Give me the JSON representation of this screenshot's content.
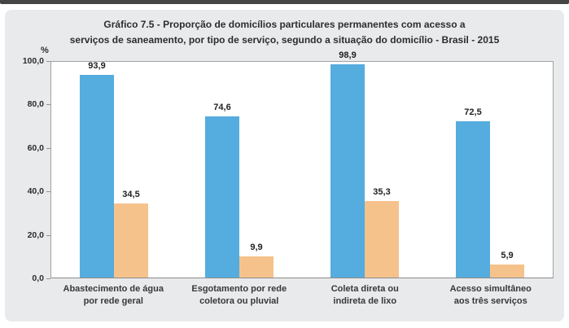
{
  "chart_data": {
    "type": "bar",
    "title": "Gráfico 7.5 - Proporção de domicílios particulares permanentes com acesso a\nserviços de saneamento, por tipo de serviço, segundo a situação do domicílio - Brasil - 2015",
    "categories": [
      "Abastecimento de água\npor rede geral",
      "Esgotamento por rede\ncoletora ou pluvial",
      "Coleta direta ou\nindireta de lixo",
      "Acesso simultâneo\naos três serviços"
    ],
    "series": [
      {
        "color": "#55acde",
        "values": [
          93.9,
          74.6,
          98.9,
          72.5
        ],
        "labels": [
          "93,9",
          "74,6",
          "98,9",
          "72,5"
        ]
      },
      {
        "color": "#f6c28c",
        "values": [
          34.5,
          9.9,
          35.3,
          5.9
        ],
        "labels": [
          "34,5",
          "9,9",
          "35,3",
          "5,9"
        ]
      }
    ],
    "y_axis": {
      "label": "%",
      "ticks": [
        "0,0",
        "20,0",
        "40,0",
        "60,0",
        "80,0",
        "100,0"
      ],
      "tick_values": [
        0,
        20,
        40,
        60,
        80,
        100
      ],
      "range": [
        0,
        100
      ]
    },
    "grid": false,
    "legend": "none",
    "value_labels_shown": true
  },
  "colors": {
    "panel_background": "#e8eaeb",
    "plot_background": "#ffffff",
    "top_strip": "#454545",
    "bar_blue": "#55acde",
    "bar_orange": "#f6c28c",
    "text": "#2d2d2d"
  }
}
